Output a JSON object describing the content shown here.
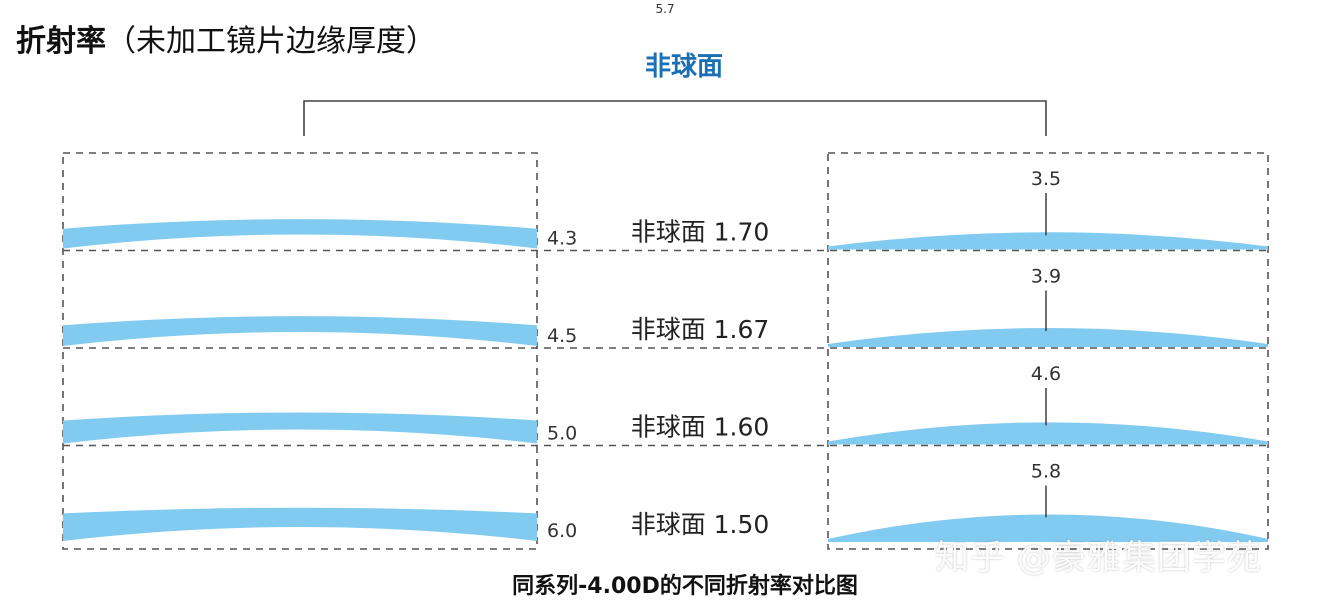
{
  "title": {
    "main": "折射率",
    "sub": "（未加工镜片边缘厚度）"
  },
  "top_value": "5.7",
  "group_label": "非球面",
  "rows": [
    {
      "label": "非球面 1.70",
      "edge": "4.3",
      "center": "3.5",
      "left_edge": 4.3,
      "right_center": 3.5
    },
    {
      "label": "非球面 1.67",
      "edge": "4.5",
      "center": "3.9",
      "left_edge": 4.5,
      "right_center": 3.9
    },
    {
      "label": "非球面 1.60",
      "edge": "5.0",
      "center": "4.6",
      "left_edge": 5.0,
      "right_center": 4.6
    },
    {
      "label": "非球面 1.50",
      "edge": "6.0",
      "center": "5.8",
      "left_edge": 6.0,
      "right_center": 5.8
    }
  ],
  "caption": "同系列-4.00D的不同折射率对比图",
  "watermark": "知乎 @豪雅集团学苑",
  "colors": {
    "lens": "#82CBF0",
    "frame": "#444444",
    "bracket": "#444444"
  }
}
